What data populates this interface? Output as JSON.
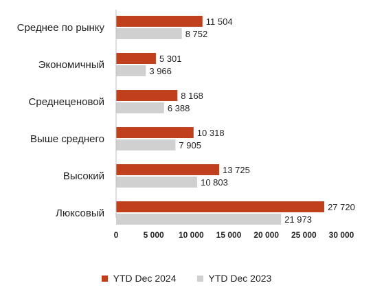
{
  "colors": {
    "series_2024": "#c0401e",
    "series_2023": "#d0d0d0"
  },
  "chart_data": {
    "type": "bar",
    "orientation": "horizontal",
    "categories": [
      "Среднее по рынку",
      "Экономичный",
      "Среднеценовой",
      "Выше среднего",
      "Высокий",
      "Люксовый"
    ],
    "series": [
      {
        "name": "YTD Dec 2024",
        "values": [
          11504,
          5301,
          8168,
          10318,
          13725,
          27720
        ],
        "labels": [
          "11 504",
          "5 301",
          "8 168",
          "10 318",
          "13 725",
          "27 720"
        ]
      },
      {
        "name": "YTD Dec 2023",
        "values": [
          8752,
          3966,
          6388,
          7905,
          10803,
          21973
        ],
        "labels": [
          "8 752",
          "3 966",
          "6 388",
          "7 905",
          "10 803",
          "21 973"
        ]
      }
    ],
    "xlim": [
      0,
      30000
    ],
    "xticks": [
      0,
      5000,
      10000,
      15000,
      20000,
      25000,
      30000
    ],
    "xtick_labels": [
      "0",
      "5 000",
      "10 000",
      "15 000",
      "20 000",
      "25 000",
      "30 000"
    ],
    "grid": false,
    "legend_position": "bottom"
  }
}
